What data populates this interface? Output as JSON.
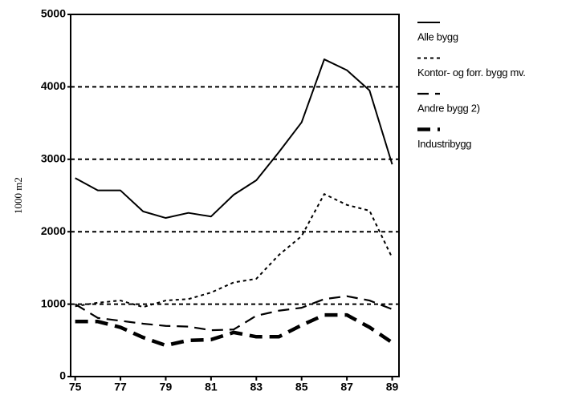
{
  "chart_data": {
    "type": "line",
    "y_label": "1000 m2",
    "x": [
      75,
      76,
      77,
      78,
      79,
      80,
      81,
      82,
      83,
      84,
      85,
      86,
      87,
      88,
      89
    ],
    "xlim": [
      74.8,
      89.3
    ],
    "xticks": [
      75,
      77,
      79,
      81,
      83,
      85,
      87,
      89
    ],
    "ylim": [
      0,
      5000
    ],
    "yticks": [
      0,
      1000,
      2000,
      3000,
      4000,
      5000
    ],
    "grid": true,
    "legend": "right",
    "series": [
      {
        "name": "Alle bygg",
        "color": "#000000",
        "style": "solid",
        "values": [
          2740,
          2570,
          2570,
          2280,
          2190,
          2260,
          2210,
          2510,
          2710,
          3100,
          3510,
          4380,
          4230,
          3950,
          2930
        ]
      },
      {
        "name": "Kontor- og forr.  bygg mv.",
        "color": "#000000",
        "style": "dotted",
        "values": [
          970,
          1020,
          1050,
          960,
          1050,
          1070,
          1160,
          1300,
          1350,
          1680,
          1940,
          2520,
          2370,
          2290,
          1640
        ]
      },
      {
        "name": "Andre bygg 2)",
        "color": "#000000",
        "style": "dashed",
        "values": [
          1000,
          810,
          770,
          730,
          700,
          690,
          640,
          650,
          840,
          910,
          950,
          1070,
          1110,
          1050,
          930
        ]
      },
      {
        "name": "Industribygg",
        "color": "#000000",
        "style": "thick-dashed",
        "values": [
          760,
          760,
          680,
          540,
          430,
          500,
          510,
          610,
          550,
          550,
          710,
          850,
          850,
          680,
          470
        ]
      }
    ]
  }
}
